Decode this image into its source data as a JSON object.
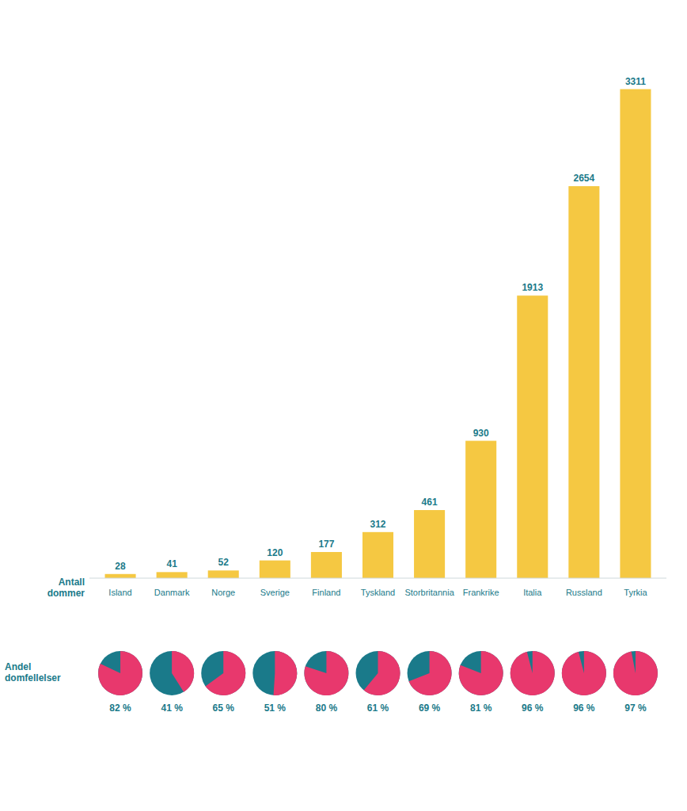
{
  "chart_data": [
    {
      "type": "bar",
      "categories": [
        "Island",
        "Danmark",
        "Norge",
        "Sverige",
        "Finland",
        "Tyskland",
        "Storbritannia",
        "Frankrike",
        "Italia",
        "Russland",
        "Tyrkia"
      ],
      "values": [
        28,
        41,
        52,
        120,
        177,
        312,
        461,
        930,
        1913,
        2654,
        3311
      ],
      "color": "#F5C842",
      "ylim": [
        0,
        3700
      ],
      "y_label": "Antall\ndommer",
      "data_labels": true,
      "tick_labels": "x",
      "grid": false
    },
    {
      "type": "pie",
      "y_label": "Andel\ndomfellelser",
      "values": [
        82,
        41,
        65,
        51,
        80,
        61,
        69,
        81,
        96,
        96,
        97
      ],
      "value_labels": [
        "82 %",
        "41 %",
        "65 %",
        "51 %",
        "80 %",
        "61 %",
        "69 %",
        "81 %",
        "96 %",
        "96 %",
        "97 %"
      ],
      "ylim": [
        0,
        100
      ],
      "colors": [
        "#E8386D",
        "#1A7A8A"
      ]
    }
  ]
}
